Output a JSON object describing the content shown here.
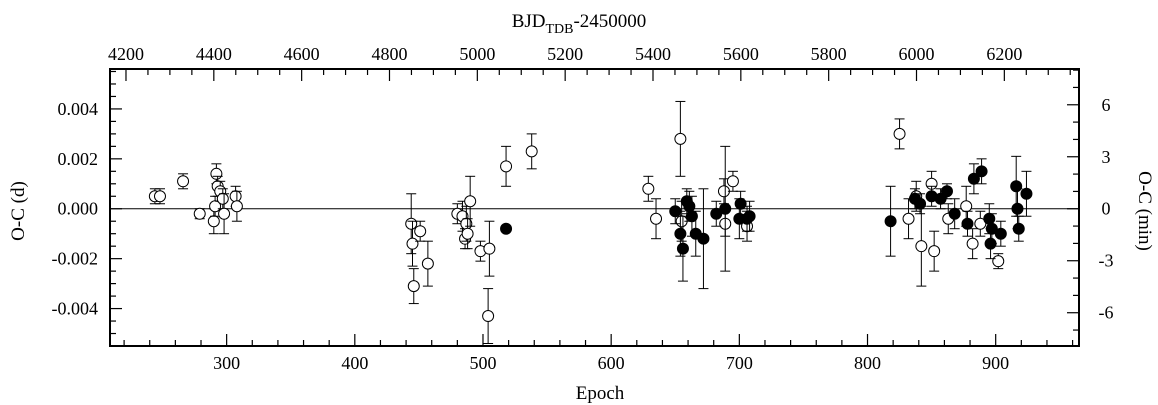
{
  "chart_data": {
    "type": "scatter",
    "top_axis_label": {
      "base": "BJD",
      "sub": "TDB",
      "rest": "-2450000"
    },
    "xlabel": "Epoch",
    "ylabel_left": "O-C (d)",
    "ylabel_right": "O-C (min)",
    "xlim": [
      209,
      965
    ],
    "ylim": [
      -0.0055,
      0.0056
    ],
    "top_xlim": [
      4163.6,
      6370
    ],
    "right_ylim": [
      -7.92,
      8.064
    ],
    "x_ticks_major": [
      300,
      400,
      500,
      600,
      700,
      800,
      900
    ],
    "x_tick_labels": [
      "300",
      "400",
      "500",
      "600",
      "700",
      "800",
      "900"
    ],
    "x_ticks_minor_step": 20,
    "y_ticks_major": [
      -0.004,
      -0.002,
      0.0,
      0.002,
      0.004
    ],
    "y_tick_labels": [
      "-0.004",
      "-0.002",
      "0.000",
      "0.002",
      "0.004"
    ],
    "y_ticks_minor_step": 0.0005,
    "top_ticks_major": [
      4200,
      4400,
      4600,
      4800,
      5000,
      5200,
      5400,
      5600,
      5800,
      6000,
      6200
    ],
    "top_tick_labels": [
      "4200",
      "4400",
      "4600",
      "4800",
      "5000",
      "5200",
      "5400",
      "5600",
      "5800",
      "6000",
      "6200"
    ],
    "top_ticks_minor_step": 50,
    "right_ticks_major": [
      -6,
      -3,
      0,
      3,
      6
    ],
    "right_tick_labels": [
      "-6",
      "-3",
      "0",
      "3",
      "6"
    ],
    "right_ticks_minor_step": 1,
    "zero_line": 0,
    "grid": false,
    "series": [
      {
        "marker": "open-circle",
        "points": [
          {
            "x": 244,
            "y": 0.0005,
            "err": 0.0003
          },
          {
            "x": 248,
            "y": 0.0005,
            "err": 0.0003
          },
          {
            "x": 266,
            "y": 0.0011,
            "err": 0.0003
          },
          {
            "x": 279,
            "y": -0.0002,
            "err": 0.0002
          },
          {
            "x": 290,
            "y": -0.0005,
            "err": 0.0005
          },
          {
            "x": 291,
            "y": 0.0001,
            "err": 0.0004
          },
          {
            "x": 292,
            "y": 0.0014,
            "err": 0.0004
          },
          {
            "x": 293,
            "y": 0.0009,
            "err": 0.0004
          },
          {
            "x": 295,
            "y": 0.0007,
            "err": 0.0004
          },
          {
            "x": 297,
            "y": 0.0004,
            "err": 0.0004
          },
          {
            "x": 298,
            "y": -0.0002,
            "err": 0.0008
          },
          {
            "x": 307,
            "y": 0.0005,
            "err": 0.0004
          },
          {
            "x": 308,
            "y": 0.0001,
            "err": 0.0006
          },
          {
            "x": 444,
            "y": -0.0006,
            "err": 0.0012
          },
          {
            "x": 445,
            "y": -0.0014,
            "err": 0.0009
          },
          {
            "x": 446,
            "y": -0.0031,
            "err": 0.0007
          },
          {
            "x": 451,
            "y": -0.0009,
            "err": 0.0004
          },
          {
            "x": 457,
            "y": -0.0022,
            "err": 0.0009
          },
          {
            "x": 480,
            "y": -0.0002,
            "err": 0.0004
          },
          {
            "x": 484,
            "y": -0.0003,
            "err": 0.0006
          },
          {
            "x": 486,
            "y": -0.0012,
            "err": 0.0004
          },
          {
            "x": 487,
            "y": -0.0006,
            "err": 0.0007
          },
          {
            "x": 488,
            "y": -0.001,
            "err": 0.0006
          },
          {
            "x": 490,
            "y": 0.0003,
            "err": 0.001
          },
          {
            "x": 498,
            "y": -0.0017,
            "err": 0.0004
          },
          {
            "x": 504,
            "y": -0.0043,
            "err": 0.0011
          },
          {
            "x": 505,
            "y": -0.0016,
            "err": 0.0011
          },
          {
            "x": 518,
            "y": 0.0017,
            "err": 0.0008
          },
          {
            "x": 538,
            "y": 0.0023,
            "err": 0.0007
          },
          {
            "x": 629,
            "y": 0.0008,
            "err": 0.0005
          },
          {
            "x": 635,
            "y": -0.0004,
            "err": 0.0008
          },
          {
            "x": 654,
            "y": 0.0028,
            "err": 0.0015
          },
          {
            "x": 655,
            "y": -0.0005,
            "err": 0.0008
          },
          {
            "x": 688,
            "y": 0.0007,
            "err": 0.0005
          },
          {
            "x": 689,
            "y": -0.0006,
            "err": 0.0005
          },
          {
            "x": 695,
            "y": 0.0011,
            "err": 0.0004
          },
          {
            "x": 706,
            "y": -0.0007,
            "err": 0.0006
          },
          {
            "x": 825,
            "y": 0.003,
            "err": 0.0006
          },
          {
            "x": 832,
            "y": -0.0004,
            "err": 0.0008
          },
          {
            "x": 838,
            "y": 0.0005,
            "err": 0.0006
          },
          {
            "x": 842,
            "y": -0.0015,
            "err": 0.0016
          },
          {
            "x": 850,
            "y": 0.001,
            "err": 0.0005
          },
          {
            "x": 852,
            "y": -0.0017,
            "err": 0.0008
          },
          {
            "x": 863,
            "y": -0.0004,
            "err": 0.0006
          },
          {
            "x": 877,
            "y": 0.0001,
            "err": 0.0008
          },
          {
            "x": 882,
            "y": -0.0014,
            "err": 0.0006
          },
          {
            "x": 888,
            "y": -0.0006,
            "err": 0.0005
          },
          {
            "x": 902,
            "y": -0.0021,
            "err": 0.0003
          }
        ]
      },
      {
        "marker": "filled-circle",
        "points": [
          {
            "x": 518,
            "y": -0.0008,
            "err": 0.0
          },
          {
            "x": 650,
            "y": -0.0001,
            "err": 0.0005
          },
          {
            "x": 654,
            "y": -0.001,
            "err": 0.0009
          },
          {
            "x": 656,
            "y": -0.0016,
            "err": 0.0013
          },
          {
            "x": 659,
            "y": 0.0003,
            "err": 0.0005
          },
          {
            "x": 661,
            "y": 0.0001,
            "err": 0.0006
          },
          {
            "x": 663,
            "y": -0.0003,
            "err": 0.0008
          },
          {
            "x": 666,
            "y": -0.001,
            "err": 0.0009
          },
          {
            "x": 672,
            "y": -0.0012,
            "err": 0.002
          },
          {
            "x": 682,
            "y": -0.0002,
            "err": 0.0005
          },
          {
            "x": 689,
            "y": 0.0,
            "err": 0.0025
          },
          {
            "x": 700,
            "y": -0.0004,
            "err": 0.0008
          },
          {
            "x": 701,
            "y": 0.0002,
            "err": 0.0005
          },
          {
            "x": 706,
            "y": -0.0004,
            "err": 0.0005
          },
          {
            "x": 708,
            "y": -0.0003,
            "err": 0.0006
          },
          {
            "x": 818,
            "y": -0.0005,
            "err": 0.0014
          },
          {
            "x": 837,
            "y": 0.0004,
            "err": 0.0004
          },
          {
            "x": 841,
            "y": 0.0002,
            "err": 0.0004
          },
          {
            "x": 850,
            "y": 0.0005,
            "err": 0.0004
          },
          {
            "x": 857,
            "y": 0.0004,
            "err": 0.0004
          },
          {
            "x": 862,
            "y": 0.0007,
            "err": 0.0003
          },
          {
            "x": 868,
            "y": -0.0002,
            "err": 0.0006
          },
          {
            "x": 878,
            "y": -0.0006,
            "err": 0.0005
          },
          {
            "x": 883,
            "y": 0.0012,
            "err": 0.0006
          },
          {
            "x": 889,
            "y": 0.0015,
            "err": 0.0005
          },
          {
            "x": 895,
            "y": -0.0004,
            "err": 0.0006
          },
          {
            "x": 896,
            "y": -0.0014,
            "err": 0.0006
          },
          {
            "x": 897,
            "y": -0.0008,
            "err": 0.0006
          },
          {
            "x": 904,
            "y": -0.001,
            "err": 0.0005
          },
          {
            "x": 916,
            "y": 0.0009,
            "err": 0.0012
          },
          {
            "x": 917,
            "y": 0.0,
            "err": 0.0008
          },
          {
            "x": 918,
            "y": -0.0008,
            "err": 0.0005
          },
          {
            "x": 924,
            "y": 0.0006,
            "err": 0.0009
          }
        ]
      }
    ]
  }
}
